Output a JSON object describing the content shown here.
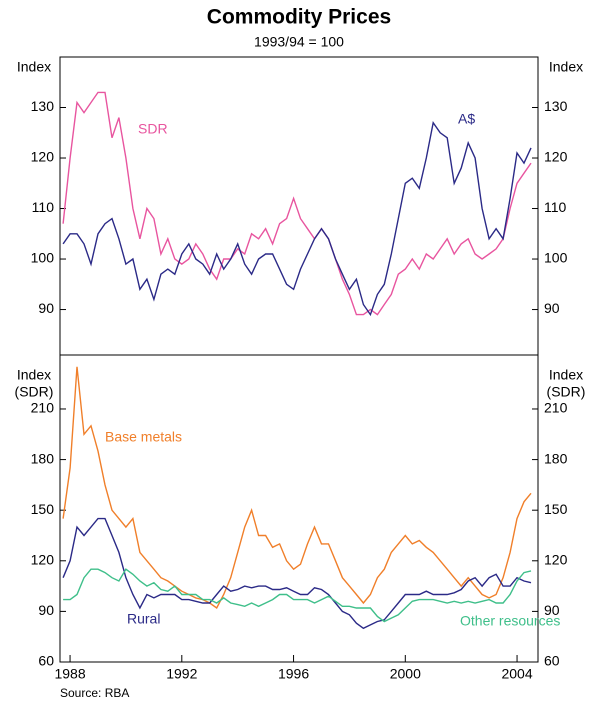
{
  "title": "Commodity Prices",
  "subtitle": "1993/94 = 100",
  "source": "Source: RBA",
  "chart_data": [
    {
      "type": "line",
      "y_label": [
        "Index"
      ],
      "x": [
        1987.75,
        1988,
        1988.25,
        1988.5,
        1988.75,
        1989,
        1989.25,
        1989.5,
        1989.75,
        1990,
        1990.25,
        1990.5,
        1990.75,
        1991,
        1991.25,
        1991.5,
        1991.75,
        1992,
        1992.25,
        1992.5,
        1992.75,
        1993,
        1993.25,
        1993.5,
        1993.75,
        1994,
        1994.25,
        1994.5,
        1994.75,
        1995,
        1995.25,
        1995.5,
        1995.75,
        1996,
        1996.25,
        1996.5,
        1996.75,
        1997,
        1997.25,
        1997.5,
        1997.75,
        1998,
        1998.25,
        1998.5,
        1998.75,
        1999,
        1999.25,
        1999.5,
        1999.75,
        2000,
        2000.25,
        2000.5,
        2000.75,
        2001,
        2001.25,
        2001.5,
        2001.75,
        2002,
        2002.25,
        2002.5,
        2002.75,
        2003,
        2003.25,
        2003.5,
        2003.75,
        2004,
        2004.25,
        2004.5
      ],
      "xlim": [
        1987.64,
        2004.75
      ],
      "ylim": [
        81,
        140
      ],
      "yticks": [
        90,
        100,
        110,
        120,
        130
      ],
      "series": [
        {
          "name": "SDR",
          "color": "#e8559f",
          "values": [
            107,
            120,
            131,
            129,
            131,
            133,
            133,
            124,
            128,
            120,
            110,
            104,
            110,
            108,
            101,
            104,
            100,
            99,
            100,
            103,
            101,
            98,
            96,
            100,
            100,
            102,
            101,
            105,
            104,
            106,
            103,
            107,
            108,
            112,
            108,
            106,
            104,
            106,
            104,
            100,
            96,
            93,
            89,
            89,
            90,
            89,
            91,
            93,
            97,
            98,
            100,
            98,
            101,
            100,
            102,
            104,
            101,
            103,
            104,
            101,
            100,
            101,
            102,
            104,
            110,
            115,
            117,
            119
          ]
        },
        {
          "name": "A$",
          "color": "#2b2a87",
          "values": [
            103,
            105,
            105,
            103,
            99,
            105,
            107,
            108,
            104,
            99,
            100,
            94,
            96,
            92,
            97,
            98,
            97,
            101,
            103,
            100,
            99,
            97,
            101,
            98,
            100,
            103,
            99,
            97,
            100,
            101,
            101,
            98,
            95,
            94,
            98,
            101,
            104,
            106,
            104,
            100,
            97,
            94,
            96,
            91,
            89,
            93,
            95,
            101,
            108,
            115,
            116,
            114,
            120,
            127,
            125,
            124,
            115,
            118,
            123,
            120,
            110,
            104,
            106,
            104,
            112,
            121,
            119,
            122
          ]
        }
      ]
    },
    {
      "type": "line",
      "y_label": [
        "Index",
        "(SDR)"
      ],
      "x": [
        1987.75,
        1988,
        1988.25,
        1988.5,
        1988.75,
        1989,
        1989.25,
        1989.5,
        1989.75,
        1990,
        1990.25,
        1990.5,
        1990.75,
        1991,
        1991.25,
        1991.5,
        1991.75,
        1992,
        1992.25,
        1992.5,
        1992.75,
        1993,
        1993.25,
        1993.5,
        1993.75,
        1994,
        1994.25,
        1994.5,
        1994.75,
        1995,
        1995.25,
        1995.5,
        1995.75,
        1996,
        1996.25,
        1996.5,
        1996.75,
        1997,
        1997.25,
        1997.5,
        1997.75,
        1998,
        1998.25,
        1998.5,
        1998.75,
        1999,
        1999.25,
        1999.5,
        1999.75,
        2000,
        2000.25,
        2000.5,
        2000.75,
        2001,
        2001.25,
        2001.5,
        2001.75,
        2002,
        2002.25,
        2002.5,
        2002.75,
        2003,
        2003.25,
        2003.5,
        2003.75,
        2004,
        2004.25,
        2004.5
      ],
      "xlim": [
        1987.64,
        2004.75
      ],
      "xticks": [
        1988,
        1992,
        1996,
        2000,
        2004
      ],
      "ylim": [
        60,
        242
      ],
      "yticks": [
        60,
        90,
        120,
        150,
        180,
        210
      ],
      "series": [
        {
          "name": "Base metals",
          "color": "#f07f2a",
          "values": [
            145,
            175,
            235,
            195,
            200,
            185,
            165,
            150,
            145,
            140,
            145,
            125,
            120,
            115,
            110,
            108,
            105,
            102,
            100,
            98,
            97,
            95,
            92,
            100,
            110,
            125,
            140,
            150,
            135,
            135,
            128,
            130,
            120,
            115,
            118,
            130,
            140,
            130,
            130,
            120,
            110,
            105,
            100,
            95,
            100,
            110,
            115,
            125,
            130,
            135,
            130,
            132,
            128,
            125,
            120,
            115,
            110,
            105,
            110,
            105,
            100,
            98,
            100,
            110,
            125,
            145,
            155,
            160
          ]
        },
        {
          "name": "Rural",
          "color": "#2b2a87",
          "values": [
            110,
            120,
            140,
            135,
            140,
            145,
            145,
            135,
            125,
            110,
            100,
            92,
            100,
            98,
            100,
            100,
            100,
            97,
            97,
            96,
            95,
            95,
            100,
            105,
            102,
            103,
            105,
            104,
            105,
            105,
            103,
            103,
            104,
            102,
            100,
            100,
            104,
            103,
            100,
            95,
            90,
            88,
            83,
            80,
            82,
            84,
            85,
            90,
            95,
            100,
            100,
            100,
            102,
            100,
            100,
            100,
            101,
            103,
            108,
            110,
            105,
            110,
            112,
            105,
            105,
            110,
            108,
            107
          ]
        },
        {
          "name": "Other resources",
          "color": "#3fbf8a",
          "values": [
            97,
            97,
            100,
            110,
            115,
            115,
            113,
            110,
            108,
            115,
            112,
            108,
            105,
            107,
            103,
            102,
            105,
            100,
            100,
            100,
            97,
            97,
            95,
            98,
            95,
            94,
            93,
            95,
            93,
            95,
            97,
            100,
            100,
            97,
            97,
            97,
            95,
            97,
            99,
            96,
            93,
            93,
            92,
            92,
            92,
            87,
            84,
            86,
            88,
            92,
            96,
            97,
            97,
            97,
            96,
            95,
            96,
            95,
            96,
            95,
            96,
            97,
            95,
            95,
            100,
            108,
            113,
            114
          ]
        }
      ]
    }
  ]
}
